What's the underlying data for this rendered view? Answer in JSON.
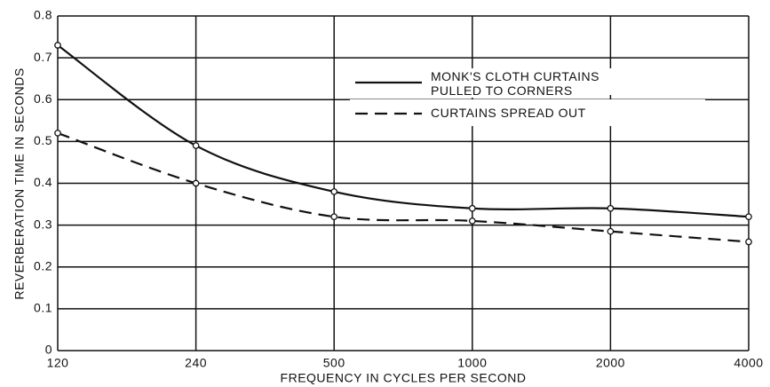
{
  "chart_data": {
    "type": "line",
    "xlabel": "FREQUENCY IN CYCLES PER SECOND",
    "ylabel": "REVERBERATION TIME IN SECONDS",
    "categories": [
      "120",
      "240",
      "500",
      "1000",
      "2000",
      "4000"
    ],
    "series": [
      {
        "name": "MONK'S CLOTH CURTAINS PULLED TO CORNERS",
        "color": "#111111",
        "style": "solid",
        "values": [
          0.73,
          0.49,
          0.38,
          0.34,
          0.34,
          0.32
        ]
      },
      {
        "name": "CURTAINS SPREAD OUT",
        "color": "#111111",
        "style": "dashed",
        "values": [
          0.52,
          0.4,
          0.32,
          0.31,
          0.285,
          0.26
        ]
      }
    ],
    "ylim": [
      0,
      0.8
    ],
    "yticks": [
      0,
      0.1,
      0.2,
      0.3,
      0.4,
      0.5,
      0.6,
      0.7,
      0.8
    ],
    "grid": true
  }
}
